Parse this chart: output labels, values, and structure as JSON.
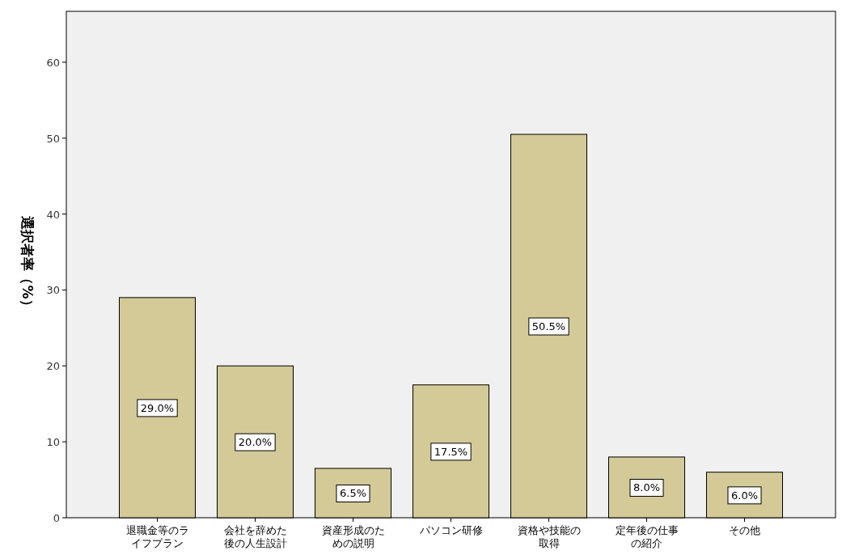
{
  "chart_data": {
    "type": "bar",
    "ylabel": "選択者率（%）",
    "categories": [
      "退職金等のライフプラン",
      "会社を辞めた後の人生設計",
      "資産形成のための説明",
      "パソコン研修",
      "資格や技能の取得",
      "定年後の仕事の紹介",
      "その他"
    ],
    "values": [
      29.0,
      20.0,
      6.5,
      17.5,
      50.5,
      8.0,
      6.0
    ],
    "value_labels": [
      "29.0%",
      "20.0%",
      "6.5%",
      "17.5%",
      "50.5%",
      "8.0%",
      "6.0%"
    ],
    "color": "#d3ca97",
    "ylim": [
      0,
      66.7
    ],
    "yticks": [
      0,
      10,
      20,
      30,
      40,
      50,
      60
    ],
    "grid": false
  }
}
